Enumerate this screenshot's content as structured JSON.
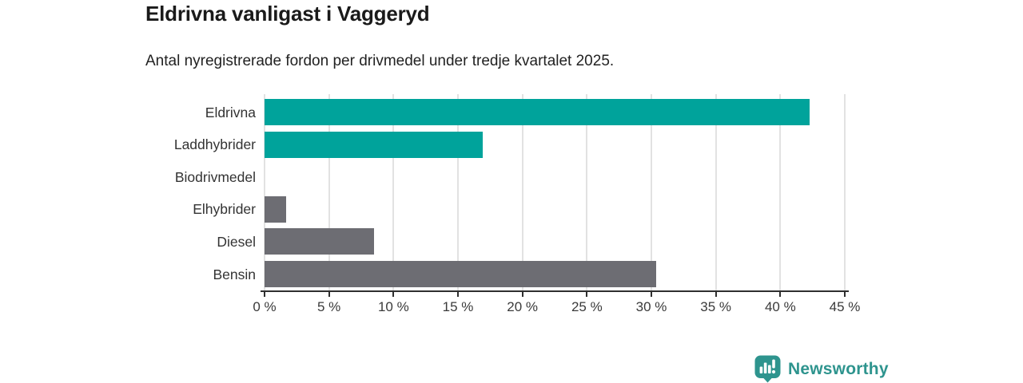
{
  "chart_data": {
    "type": "bar",
    "orientation": "horizontal",
    "title": "Eldrivna vanligast i Vaggeryd",
    "subtitle": "Antal nyregistrerade fordon per drivmedel under tredje kvartalet 2025.",
    "categories": [
      "Eldrivna",
      "Laddhybrider",
      "Biodrivmedel",
      "Elhybrider",
      "Diesel",
      "Bensin"
    ],
    "values": [
      42.3,
      16.9,
      0,
      1.7,
      8.5,
      30.4
    ],
    "unit": "%",
    "xlabel": "",
    "ylabel": "",
    "xlim": [
      0,
      45
    ],
    "tick_step": 5,
    "x_tick_labels": [
      "0 %",
      "5 %",
      "10 %",
      "15 %",
      "20 %",
      "25 %",
      "30 %",
      "35 %",
      "40 %",
      "45 %"
    ],
    "grid": true,
    "legend": "none",
    "bar_colors": [
      "#00a39b",
      "#00a39b",
      "#6d6d73",
      "#6d6d73",
      "#6d6d73",
      "#6d6d73"
    ],
    "colors": {
      "teal": "#00a39b",
      "gray": "#6d6d73",
      "gridline": "#e2e2e2",
      "axis": "#2f2f2f",
      "title_text": "#1a1a1a",
      "label_text": "#333333"
    }
  },
  "branding": {
    "logo_text": "Newsworthy",
    "logo_color": "#2e948e",
    "icon_name": "newsworthy-bar-chart-pin-icon"
  }
}
